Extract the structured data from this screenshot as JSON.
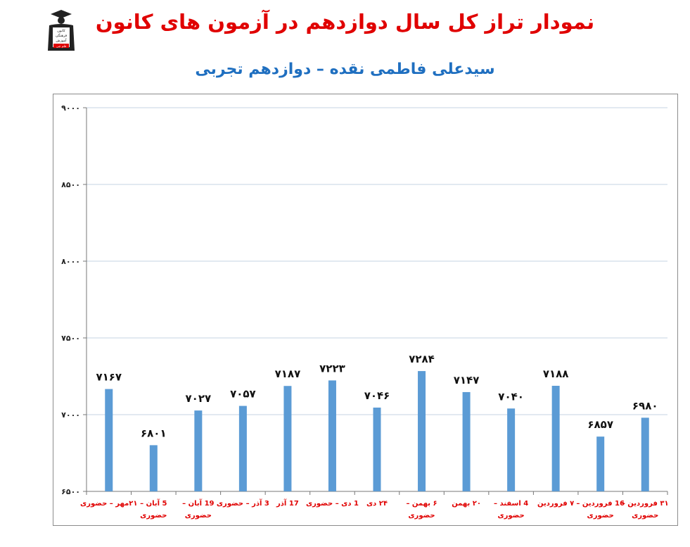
{
  "header": {
    "title": "نمودار تراز کل سال دوازدهم در آزمون های کانون",
    "subtitle": "سیدعلی فاطمی نقده – دوازدهم تجربی"
  },
  "logo": {
    "icon": "graduate-figure-icon",
    "lines": [
      "کانون",
      "فرهنگی",
      "آموزش",
      "قلم چی"
    ]
  },
  "colors": {
    "title": "#e00000",
    "subtitle": "#1f6fc0",
    "bar": "#5b9bd5",
    "xlabel": "#e00000"
  },
  "chart_data": {
    "type": "bar",
    "title": "",
    "xlabel": "",
    "ylabel": "",
    "ylim": [
      6500,
      9000
    ],
    "yticks": [
      6500,
      7000,
      7500,
      8000,
      8500,
      9000
    ],
    "ytick_labels": [
      "۶۵۰۰",
      "۷۰۰۰",
      "۷۵۰۰",
      "۸۰۰۰",
      "۸۵۰۰",
      "۹۰۰۰"
    ],
    "grid": true,
    "categories": [
      [
        "۲۱مهر – حضوری"
      ],
      [
        "5 آبان –",
        "حضوری"
      ],
      [
        "19 آبان –",
        "حضوری"
      ],
      [
        "3 آذر – حضوری"
      ],
      [
        "17 آذر"
      ],
      [
        "1 دی – حضوری"
      ],
      [
        "۲۴ دی"
      ],
      [
        "۶ بهمن –",
        "حضوری"
      ],
      [
        "۲۰ بهمن"
      ],
      [
        "4 اسفند –",
        "حضوری"
      ],
      [
        "۷ فروردین"
      ],
      [
        "16 فروردین –",
        "حضوری"
      ],
      [
        "۳۱ فروردین –",
        "حضوری"
      ]
    ],
    "values": [
      7167,
      6801,
      7027,
      7057,
      7187,
      7223,
      7046,
      7284,
      7147,
      7040,
      7188,
      6857,
      6980
    ],
    "value_labels": [
      "۷۱۶۷",
      "۶۸۰۱",
      "۷۰۲۷",
      "۷۰۵۷",
      "۷۱۸۷",
      "۷۲۲۳",
      "۷۰۴۶",
      "۷۲۸۴",
      "۷۱۴۷",
      "۷۰۴۰",
      "۷۱۸۸",
      "۶۸۵۷",
      "۶۹۸۰"
    ]
  }
}
